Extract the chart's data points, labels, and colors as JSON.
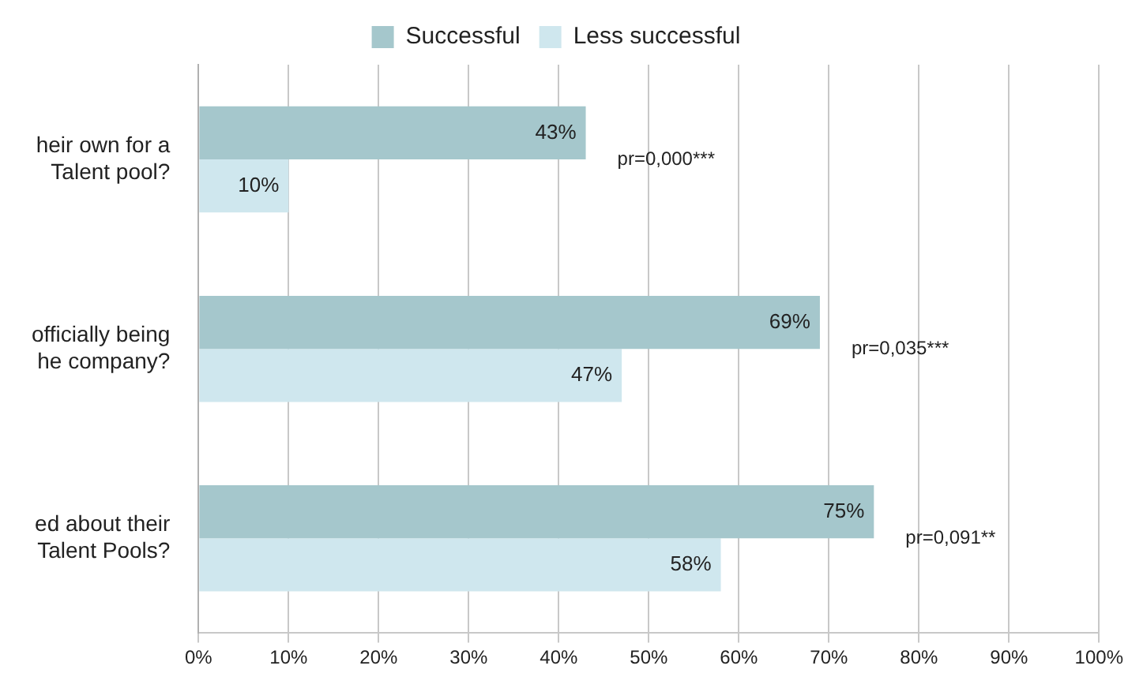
{
  "chart_data": {
    "type": "bar",
    "orientation": "horizontal",
    "categories": [
      "heir own for a\nTalent pool?",
      "officially being\nhe company?",
      "ed about their\nTalent Pools?"
    ],
    "series": [
      {
        "name": "Successful",
        "color": "#a5c7cc",
        "values": [
          43,
          69,
          75
        ],
        "value_labels": [
          "43%",
          "69%",
          "75%"
        ]
      },
      {
        "name": "Less successful",
        "color": "#cfe7ee",
        "values": [
          10,
          47,
          58
        ],
        "value_labels": [
          "10%",
          "47%",
          "58%"
        ]
      }
    ],
    "xlim": [
      0,
      100
    ],
    "xticks": [
      {
        "value": 0,
        "label": "0%"
      },
      {
        "value": 10,
        "label": "10%"
      },
      {
        "value": 20,
        "label": "20%"
      },
      {
        "value": 30,
        "label": "30%"
      },
      {
        "value": 40,
        "label": "40%"
      },
      {
        "value": 50,
        "label": "50%"
      },
      {
        "value": 60,
        "label": "60%"
      },
      {
        "value": 70,
        "label": "70%"
      },
      {
        "value": 80,
        "label": "80%"
      },
      {
        "value": 90,
        "label": "90%"
      },
      {
        "value": 100,
        "label": "100%"
      }
    ],
    "grid": "x",
    "legend": "top",
    "annotations": [
      "pr=0,000***",
      "pr=0,035***",
      "pr=0,091**"
    ]
  }
}
